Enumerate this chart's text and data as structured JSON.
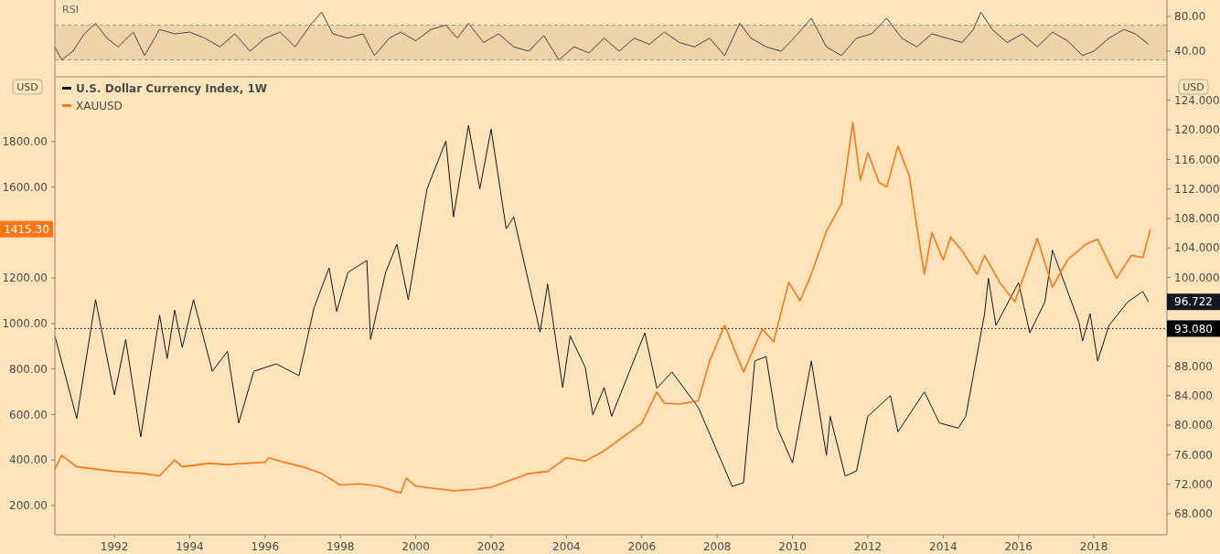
{
  "chart_data": [
    {
      "type": "line",
      "title": "RSI",
      "xlim": [
        1990.42,
        2019.94
      ],
      "ylim": [
        10.5,
        99
      ],
      "yticks": [
        {
          "value": 40,
          "label": "40.00"
        },
        {
          "value": 80,
          "label": "80.00"
        }
      ],
      "tick_labels": "y",
      "grid": false,
      "legend": false,
      "bands": [
        {
          "axis": "y",
          "from": 30,
          "to": 70,
          "color": "#f0d2a8"
        }
      ],
      "ref_lines": [
        {
          "axis": "y",
          "value": 30,
          "color": "#a39883",
          "line_style": "dashed"
        },
        {
          "axis": "y",
          "value": 70,
          "color": "#a39883",
          "line_style": "dashed"
        }
      ],
      "series": [
        {
          "color": "#434651",
          "x": [
            1990.42,
            1990.6,
            1990.9,
            1991.2,
            1991.5,
            1991.8,
            1992.1,
            1992.5,
            1992.8,
            1993.2,
            1993.6,
            1994.0,
            1994.4,
            1994.8,
            1995.2,
            1995.6,
            1996.0,
            1996.4,
            1996.8,
            1997.2,
            1997.5,
            1997.8,
            1998.2,
            1998.6,
            1998.9,
            1999.3,
            1999.6,
            2000.0,
            2000.4,
            2000.8,
            2001.1,
            2001.4,
            2001.8,
            2002.2,
            2002.6,
            2003.0,
            2003.4,
            2003.8,
            2004.2,
            2004.6,
            2005.0,
            2005.4,
            2005.8,
            2006.2,
            2006.6,
            2007.0,
            2007.4,
            2007.8,
            2008.2,
            2008.6,
            2008.9,
            2009.3,
            2009.7,
            2010.1,
            2010.5,
            2010.9,
            2011.3,
            2011.7,
            2012.1,
            2012.5,
            2012.9,
            2013.3,
            2013.7,
            2014.1,
            2014.5,
            2014.8,
            2015.0,
            2015.3,
            2015.7,
            2016.1,
            2016.5,
            2016.9,
            2017.3,
            2017.7,
            2018.0,
            2018.4,
            2018.8,
            2019.1,
            2019.45
          ],
          "values": [
            45,
            30,
            40,
            60,
            72,
            55,
            45,
            62,
            35,
            65,
            60,
            62,
            55,
            45,
            60,
            40,
            55,
            62,
            45,
            70,
            85,
            60,
            55,
            60,
            35,
            55,
            62,
            52,
            65,
            70,
            55,
            72,
            50,
            60,
            45,
            40,
            58,
            30,
            45,
            38,
            55,
            40,
            55,
            48,
            62,
            50,
            45,
            55,
            35,
            72,
            55,
            45,
            40,
            58,
            78,
            45,
            35,
            55,
            60,
            78,
            55,
            45,
            60,
            55,
            50,
            65,
            85,
            65,
            50,
            60,
            45,
            62,
            52,
            35,
            40,
            55,
            65,
            60,
            48
          ]
        }
      ]
    },
    {
      "type": "line",
      "xlim": [
        1990.42,
        2019.94
      ],
      "ylim": [
        71,
        2081
      ],
      "y2lim": [
        65.15,
        127.06
      ],
      "ylabel": "USD",
      "y2label": "USD",
      "grid": false,
      "legend": "top left",
      "xticks": [
        1992,
        1994,
        1996,
        1998,
        2000,
        2002,
        2004,
        2006,
        2008,
        2010,
        2012,
        2014,
        2016,
        2018
      ],
      "yticks": [
        {
          "value": 200,
          "label": "200.00"
        },
        {
          "value": 400,
          "label": "400.00"
        },
        {
          "value": 600,
          "label": "600.00"
        },
        {
          "value": 800,
          "label": "800.00"
        },
        {
          "value": 1000,
          "label": "1000.00"
        },
        {
          "value": 1200,
          "label": "1200.00"
        },
        {
          "value": 1600,
          "label": "1600.00"
        },
        {
          "value": 1800,
          "label": "1800.00"
        }
      ],
      "y2ticks": [
        {
          "value": 68,
          "label": "68.000"
        },
        {
          "value": 72,
          "label": "72.000"
        },
        {
          "value": 76,
          "label": "76.000"
        },
        {
          "value": 80,
          "label": "80.000"
        },
        {
          "value": 84,
          "label": "84.000"
        },
        {
          "value": 88,
          "label": "88.000"
        },
        {
          "value": 100,
          "label": "100.000"
        },
        {
          "value": 104,
          "label": "104.000"
        },
        {
          "value": 108,
          "label": "108.000"
        },
        {
          "value": 112,
          "label": "112.000"
        },
        {
          "value": 116,
          "label": "116.000"
        },
        {
          "value": 120,
          "label": "120.000"
        },
        {
          "value": 124,
          "label": "124.000"
        }
      ],
      "ref_lines": [
        {
          "axis": "y2",
          "value": 93.08,
          "label": "93.080",
          "color": "#000000",
          "line_style": "dotted"
        }
      ],
      "annotations": [
        "96.722",
        "1415.30"
      ],
      "series": [
        {
          "name": "U.S. Dollar Currency Index, 1W",
          "axis": "y2",
          "color": "#131722",
          "x": [
            1990.42,
            1991.0,
            1991.5,
            1992.0,
            1992.3,
            1992.7,
            1993.2,
            1993.4,
            1993.6,
            1993.8,
            1994.1,
            1994.6,
            1995.0,
            1995.3,
            1995.7,
            1996.3,
            1996.9,
            1997.3,
            1997.7,
            1997.9,
            1998.2,
            1998.7,
            1998.8,
            1999.2,
            1999.5,
            1999.8,
            2000.3,
            2000.8,
            2001.0,
            2001.4,
            2001.7,
            2002.0,
            2002.4,
            2002.6,
            2003.3,
            2003.5,
            2003.9,
            2004.1,
            2004.5,
            2004.7,
            2005.0,
            2005.2,
            2006.08,
            2006.4,
            2006.8,
            2007.5,
            2008.4,
            2008.7,
            2009.0,
            2009.3,
            2009.6,
            2010.0,
            2010.5,
            2010.9,
            2011.0,
            2011.4,
            2011.7,
            2012.0,
            2012.6,
            2012.8,
            2013.5,
            2013.9,
            2014.4,
            2014.6,
            2015.1,
            2015.2,
            2015.4,
            2016.0,
            2016.3,
            2016.7,
            2016.9,
            2017.6,
            2017.7,
            2017.9,
            2018.1,
            2018.4,
            2018.9,
            2019.3,
            2019.45
          ],
          "values": [
            92.1,
            80.9,
            97.0,
            84.1,
            91.6,
            78.4,
            94.9,
            89.0,
            95.6,
            90.5,
            97.0,
            87.3,
            90.0,
            80.3,
            87.3,
            88.3,
            86.7,
            95.9,
            101.3,
            95.4,
            100.7,
            102.3,
            91.6,
            100.7,
            104.5,
            97.0,
            112.0,
            118.5,
            108.2,
            120.6,
            112.0,
            120.1,
            106.6,
            108.2,
            92.6,
            99.1,
            85.1,
            92.1,
            87.8,
            81.4,
            85.1,
            81.2,
            92.5,
            85.0,
            87.2,
            82.4,
            71.7,
            72.2,
            88.7,
            89.3,
            79.6,
            74.9,
            88.7,
            75.9,
            81.2,
            73.1,
            73.8,
            81.2,
            84.0,
            79.1,
            84.5,
            80.3,
            79.6,
            81.2,
            95.1,
            99.9,
            93.5,
            99.3,
            92.5,
            96.7,
            103.7,
            94.0,
            91.4,
            95.1,
            88.7,
            93.5,
            96.7,
            98.1,
            96.7
          ]
        },
        {
          "name": "XAUUSD",
          "axis": "y",
          "color": "#ff7415",
          "x": [
            1990.42,
            1990.6,
            1991.0,
            1992.0,
            1992.8,
            1993.2,
            1993.6,
            1993.8,
            1994.5,
            1995.0,
            1996.0,
            1996.1,
            1996.5,
            1997.0,
            1997.5,
            1998.0,
            1998.5,
            1999.0,
            1999.6,
            1999.75,
            2000.0,
            2001.0,
            2001.5,
            2002.0,
            2002.5,
            2003.0,
            2003.5,
            2004.0,
            2004.5,
            2005.0,
            2006.0,
            2006.4,
            2006.6,
            2007.0,
            2007.5,
            2007.8,
            2008.2,
            2008.7,
            2009.2,
            2009.5,
            2009.9,
            2010.2,
            2010.5,
            2010.9,
            2011.3,
            2011.6,
            2011.8,
            2012.0,
            2012.3,
            2012.5,
            2012.8,
            2013.1,
            2013.3,
            2013.5,
            2013.7,
            2014.0,
            2014.2,
            2014.5,
            2014.9,
            2015.1,
            2015.5,
            2015.9,
            2016.5,
            2016.9,
            2017.3,
            2017.8,
            2018.1,
            2018.6,
            2019.0,
            2019.3,
            2019.5
          ],
          "values": [
            360,
            420,
            370,
            350,
            340,
            330,
            400,
            370,
            385,
            380,
            390,
            410,
            390,
            370,
            340,
            290,
            295,
            285,
            255,
            320,
            285,
            265,
            270,
            280,
            310,
            340,
            350,
            410,
            395,
            440,
            562,
            699,
            650,
            646,
            660,
            835,
            992,
            787,
            976,
            920,
            1181,
            1100,
            1217,
            1406,
            1527,
            1884,
            1631,
            1751,
            1620,
            1600,
            1780,
            1650,
            1426,
            1217,
            1400,
            1280,
            1380,
            1320,
            1217,
            1300,
            1181,
            1096,
            1374,
            1160,
            1280,
            1350,
            1370,
            1199,
            1300,
            1290,
            1415
          ]
        }
      ]
    }
  ]
}
